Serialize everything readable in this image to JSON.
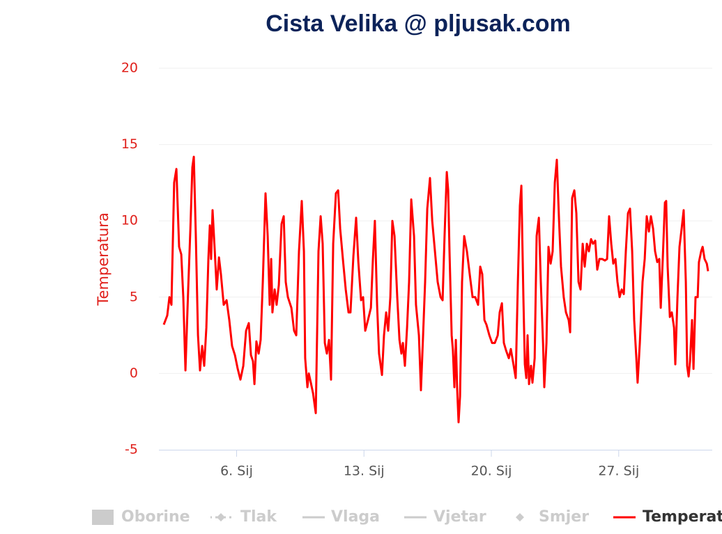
{
  "chart_data": {
    "type": "line",
    "title": "Cista Velika @ pljusak.com",
    "y_label": "Temperatura",
    "xlim": [
      1.73,
      32.14
    ],
    "xticks": [
      {
        "value": 6,
        "label": "6. Sij"
      },
      {
        "value": 13,
        "label": "13. Sij"
      },
      {
        "value": 20,
        "label": "20. Sij"
      },
      {
        "value": 27,
        "label": "27. Sij"
      }
    ],
    "ylim": [
      -5,
      20
    ],
    "yticks": [
      -5,
      0,
      5,
      10,
      15,
      20
    ],
    "grid": true,
    "series": [
      {
        "name": "Temperatura",
        "color": "#ff0000",
        "x": [
          2.0,
          2.19,
          2.31,
          2.42,
          2.57,
          2.69,
          2.84,
          2.96,
          3.07,
          3.19,
          3.34,
          3.46,
          3.57,
          3.65,
          3.76,
          3.88,
          3.99,
          4.11,
          4.22,
          4.34,
          4.45,
          4.53,
          4.6,
          4.68,
          4.8,
          4.91,
          5.03,
          5.14,
          5.29,
          5.45,
          5.6,
          5.75,
          5.91,
          6.06,
          6.21,
          6.37,
          6.52,
          6.67,
          6.79,
          6.9,
          6.98,
          7.09,
          7.21,
          7.32,
          7.44,
          7.59,
          7.71,
          7.82,
          7.9,
          7.97,
          8.09,
          8.2,
          8.32,
          8.47,
          8.59,
          8.7,
          8.82,
          9.01,
          9.16,
          9.28,
          9.43,
          9.58,
          9.7,
          9.77,
          9.89,
          9.97,
          10.08,
          10.2,
          10.35,
          10.5,
          10.62,
          10.73,
          10.85,
          10.96,
          11.08,
          11.19,
          11.31,
          11.46,
          11.58,
          11.69,
          11.84,
          12.0,
          12.15,
          12.26,
          12.42,
          12.57,
          12.69,
          12.84,
          12.95,
          13.07,
          13.22,
          13.38,
          13.49,
          13.6,
          13.72,
          13.83,
          13.99,
          14.1,
          14.22,
          14.33,
          14.45,
          14.56,
          14.68,
          14.83,
          14.95,
          15.06,
          15.14,
          15.25,
          15.37,
          15.48,
          15.6,
          15.75,
          15.86,
          16.02,
          16.13,
          16.25,
          16.36,
          16.48,
          16.63,
          16.75,
          16.9,
          17.05,
          17.21,
          17.32,
          17.43,
          17.55,
          17.63,
          17.7,
          17.82,
          17.89,
          17.97,
          18.05,
          18.12,
          18.2,
          18.28,
          18.39,
          18.51,
          18.66,
          18.81,
          18.97,
          19.12,
          19.27,
          19.39,
          19.5,
          19.62,
          19.73,
          19.89,
          20.04,
          20.19,
          20.35,
          20.46,
          20.58,
          20.69,
          20.81,
          20.96,
          21.07,
          21.23,
          21.34,
          21.46,
          21.57,
          21.65,
          21.76,
          21.84,
          21.92,
          21.99,
          22.07,
          22.18,
          22.26,
          22.38,
          22.49,
          22.61,
          22.72,
          22.84,
          22.91,
          23.03,
          23.14,
          23.26,
          23.37,
          23.49,
          23.6,
          23.72,
          23.83,
          23.98,
          24.1,
          24.25,
          24.33,
          24.44,
          24.56,
          24.67,
          24.79,
          24.9,
          25.02,
          25.13,
          25.25,
          25.36,
          25.48,
          25.59,
          25.71,
          25.82,
          25.94,
          26.09,
          26.24,
          26.36,
          26.47,
          26.59,
          26.7,
          26.82,
          26.93,
          27.05,
          27.16,
          27.28,
          27.39,
          27.51,
          27.62,
          27.74,
          27.85,
          27.97,
          28.04,
          28.16,
          28.31,
          28.43,
          28.54,
          28.66,
          28.77,
          28.89,
          29.0,
          29.12,
          29.23,
          29.31,
          29.42,
          29.54,
          29.61,
          29.69,
          29.81,
          29.92,
          30.04,
          30.11,
          30.23,
          30.34,
          30.46,
          30.57,
          30.69,
          30.76,
          30.84,
          30.92,
          31.03,
          31.11,
          31.22,
          31.34,
          31.41,
          31.53,
          31.61,
          31.72,
          31.84,
          31.91
        ],
        "values": [
          3.2,
          3.8,
          5.0,
          4.5,
          12.5,
          13.4,
          8.3,
          7.8,
          5.0,
          0.2,
          5.5,
          9.5,
          13.5,
          14.2,
          9.0,
          2.5,
          0.2,
          1.8,
          0.5,
          3.0,
          7.5,
          9.7,
          7.5,
          10.7,
          8.0,
          5.5,
          7.6,
          6.5,
          4.5,
          4.8,
          3.5,
          1.8,
          1.2,
          0.3,
          -0.4,
          0.5,
          2.8,
          3.3,
          1.2,
          0.8,
          -0.7,
          2.1,
          1.3,
          2.2,
          6.0,
          11.8,
          9.0,
          4.5,
          7.5,
          4.0,
          5.5,
          4.5,
          5.8,
          9.8,
          10.3,
          6.0,
          5.0,
          4.3,
          2.8,
          2.5,
          8.0,
          11.3,
          8.0,
          1.0,
          -0.9,
          0.0,
          -0.6,
          -1.3,
          -2.6,
          8.0,
          10.3,
          8.5,
          2.0,
          1.3,
          2.2,
          -0.4,
          8.5,
          11.8,
          12.0,
          9.5,
          7.5,
          5.5,
          4.0,
          4.0,
          7.7,
          10.2,
          7.3,
          4.8,
          5.0,
          2.8,
          3.5,
          4.3,
          7.5,
          10.0,
          4.5,
          1.3,
          -0.1,
          2.5,
          4.0,
          2.8,
          5.0,
          10.0,
          9.0,
          5.0,
          2.2,
          1.3,
          2.0,
          0.5,
          3.0,
          6.0,
          11.4,
          9.0,
          4.5,
          2.5,
          -1.1,
          2.5,
          6.0,
          10.8,
          12.8,
          10.0,
          8.0,
          6.0,
          5.0,
          4.8,
          9.0,
          13.2,
          12.0,
          8.0,
          2.5,
          1.5,
          -0.9,
          2.2,
          -0.9,
          -3.2,
          -1.5,
          6.0,
          9.0,
          8.0,
          6.5,
          5.0,
          5.0,
          4.5,
          7.0,
          6.5,
          3.5,
          3.2,
          2.5,
          2.0,
          2.0,
          2.5,
          4.0,
          4.6,
          2.0,
          1.5,
          1.0,
          1.6,
          0.5,
          -0.3,
          6.0,
          11.0,
          12.3,
          5.0,
          0.6,
          -0.3,
          2.5,
          -0.7,
          0.5,
          -0.6,
          1.0,
          9.0,
          10.2,
          6.0,
          2.0,
          -0.9,
          2.0,
          8.3,
          7.2,
          8.0,
          12.5,
          14.0,
          10.0,
          7.0,
          5.0,
          4.0,
          3.5,
          2.7,
          11.5,
          12.0,
          10.5,
          6.0,
          5.5,
          8.5,
          7.0,
          8.5,
          8.0,
          8.8,
          8.5,
          8.7,
          6.8,
          7.5,
          7.5,
          7.4,
          7.5,
          10.3,
          8.5,
          7.2,
          7.5,
          6.0,
          5.0,
          5.5,
          5.2,
          8.0,
          10.5,
          10.8,
          8.0,
          3.5,
          1.0,
          -0.6,
          2.0,
          6.0,
          7.5,
          10.3,
          9.3,
          10.3,
          9.5,
          8.0,
          7.3,
          7.5,
          4.3,
          7.5,
          11.2,
          11.3,
          7.0,
          3.7,
          4.0,
          3.0,
          0.6,
          5.0,
          8.3,
          9.5,
          10.7,
          6.0,
          0.5,
          -0.2,
          0.8,
          3.5,
          0.3,
          5.0,
          5.0,
          7.3,
          8.0,
          8.3,
          7.5,
          7.2,
          6.7
        ]
      }
    ],
    "legend": {
      "hidden": [
        "Oborine",
        "Tlak",
        "Vlaga",
        "Vjetar",
        "Smjer"
      ]
    }
  }
}
